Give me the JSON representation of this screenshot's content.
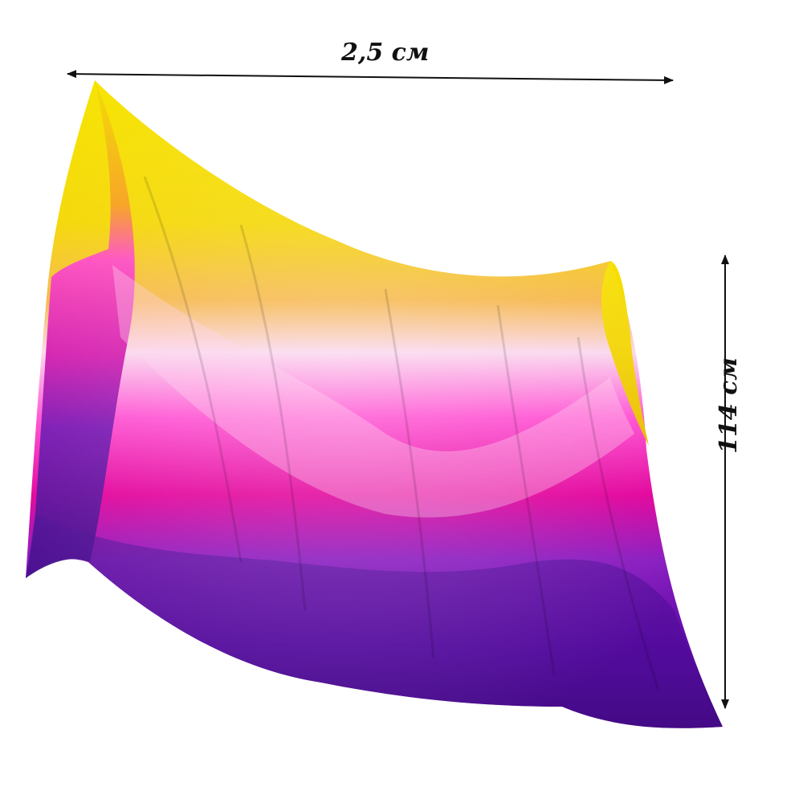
{
  "dimensions": {
    "width_label": "2,5 см",
    "height_label": "114 см"
  },
  "veil": {
    "colors": [
      "#f5e100",
      "#f8a300",
      "#f9d4e6",
      "#ff2fc6",
      "#e0008e",
      "#6b0ab5",
      "#3d0a7a"
    ]
  }
}
